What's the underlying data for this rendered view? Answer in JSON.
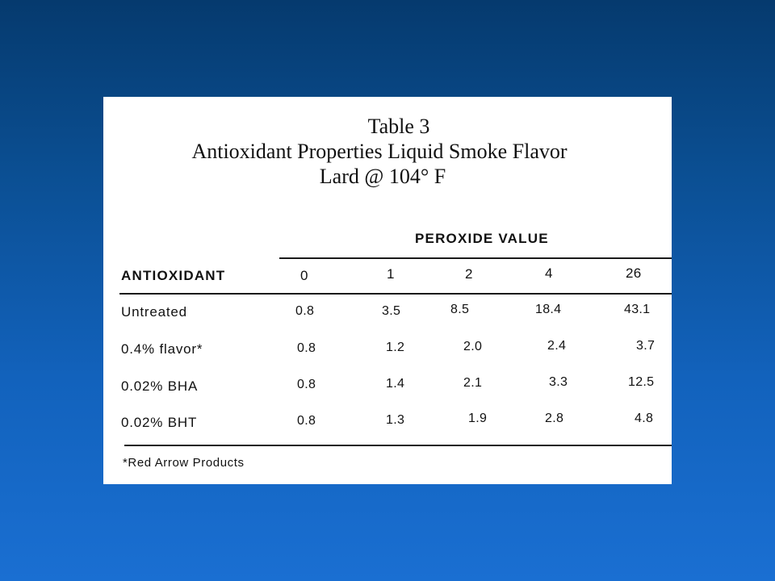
{
  "slide": {
    "background_top": "#053a6e",
    "background_bottom": "#1a6fd2"
  },
  "document": {
    "title_line1": "Table 3",
    "title_line2": "Antioxidant Properties Liquid Smoke Flavor",
    "title_line3": "Lard @ 104° F",
    "group_header": "PEROXIDE VALUE",
    "row_header": "ANTIOXIDANT",
    "columns": [
      "0",
      "1",
      "2",
      "4",
      "26"
    ],
    "rows": [
      {
        "label": "Untreated",
        "values": [
          "0.8",
          "3.5",
          "8.5",
          "18.4",
          "43.1"
        ]
      },
      {
        "label": "0.4% flavor*",
        "values": [
          "0.8",
          "1.2",
          "2.0",
          "2.4",
          "3.7"
        ]
      },
      {
        "label": "0.02% BHA",
        "values": [
          "0.8",
          "1.4",
          "2.1",
          "3.3",
          "12.5"
        ]
      },
      {
        "label": "0.02% BHT",
        "values": [
          "0.8",
          "1.3",
          "1.9",
          "2.8",
          "4.8"
        ]
      }
    ],
    "footnote": "*Red Arrow Products"
  }
}
